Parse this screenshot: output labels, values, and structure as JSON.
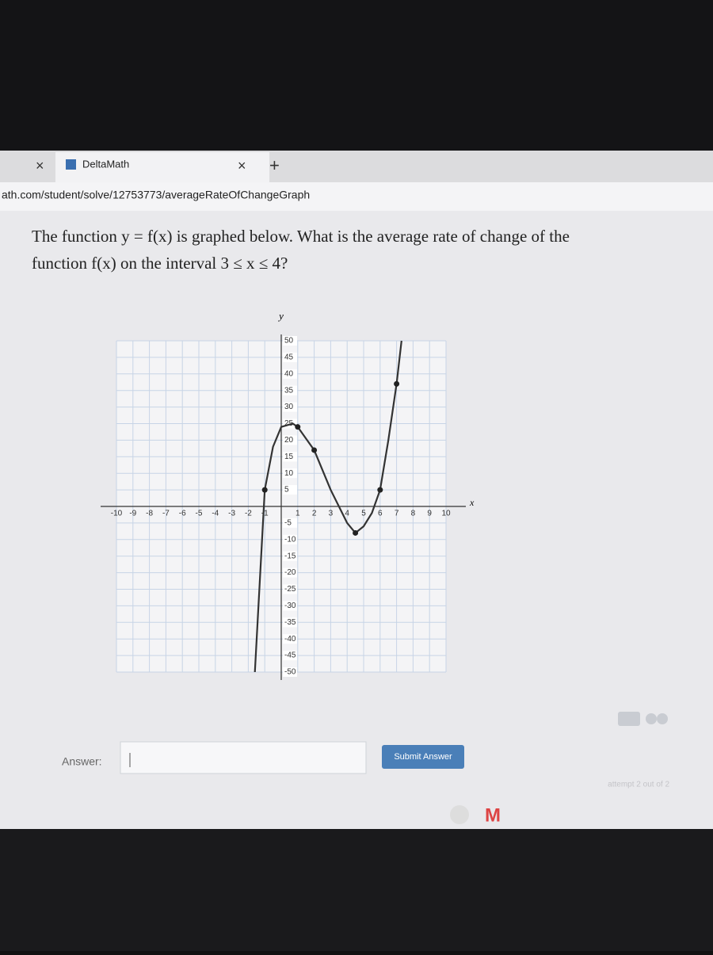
{
  "browser": {
    "tab_close": "×",
    "tab_title": "DeltaMath",
    "tab_close_2": "×",
    "new_tab": "+",
    "url": "ath.com/student/solve/12753773/averageRateOfChangeGraph"
  },
  "question": {
    "line1": "The function y = f(x) is graphed below. What is the average rate of change of the",
    "line2": "function f(x) on the interval 3 ≤ x ≤ 4?"
  },
  "graph": {
    "x_label": "x",
    "y_label": "y",
    "xlim": [
      -10,
      10
    ],
    "ylim": [
      -50,
      50
    ],
    "xticks": [
      -10,
      -9,
      -8,
      -7,
      -6,
      -5,
      -4,
      -3,
      -2,
      -1,
      1,
      2,
      3,
      4,
      5,
      6,
      7,
      8,
      9,
      10
    ],
    "yticks": [
      50,
      45,
      40,
      35,
      30,
      25,
      20,
      15,
      10,
      5,
      -5,
      -10,
      -15,
      -20,
      -25,
      -30,
      -35,
      -40,
      -45,
      -50
    ],
    "curve_x": [
      -1.6,
      -1,
      -0.5,
      0,
      0.7,
      1,
      2,
      3,
      4,
      4.5,
      5,
      5.5,
      6,
      6.5,
      7,
      7.3
    ],
    "curve_y": [
      -50,
      5,
      18,
      24,
      25,
      24,
      17,
      5,
      -5,
      -8,
      -6,
      -2,
      5,
      20,
      37,
      50
    ],
    "dots_x": [
      -1,
      1,
      2,
      4.5,
      6,
      7
    ],
    "dots_y": [
      5,
      24,
      17,
      -8,
      5,
      37
    ]
  },
  "form": {
    "answer_label": "Answer:",
    "submit": "Submit Answer",
    "attempt": "attempt 2 out of 2"
  }
}
